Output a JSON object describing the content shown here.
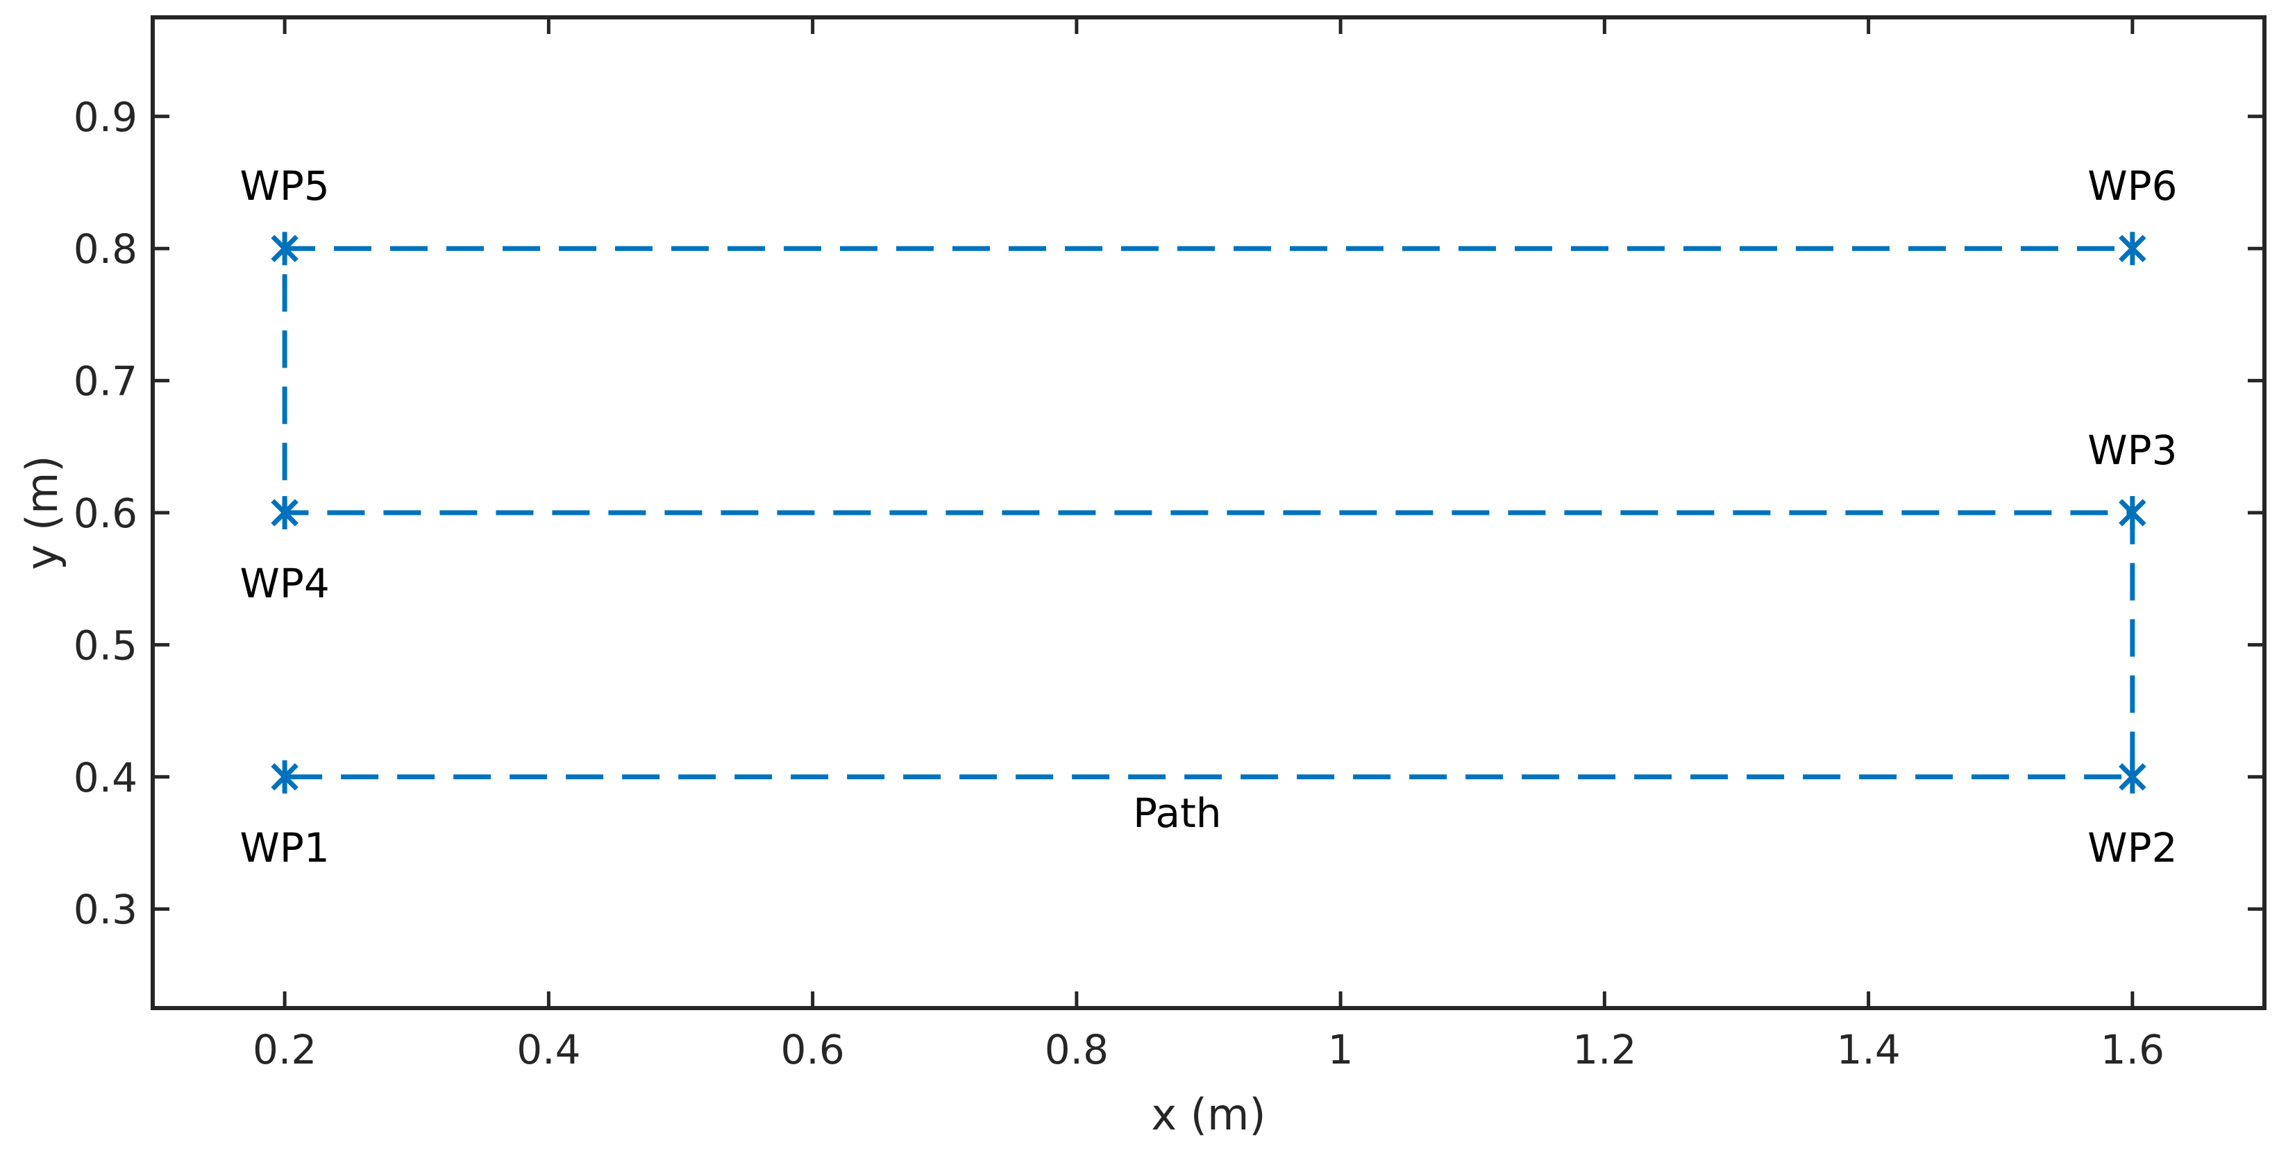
{
  "chart_data": {
    "type": "line",
    "title": "",
    "xlabel": "x (m)",
    "ylabel": "y (m)",
    "xlim": [
      0.1,
      1.7
    ],
    "ylim": [
      0.225,
      0.975
    ],
    "xticks": [
      0.2,
      0.4,
      0.6,
      0.8,
      1.0,
      1.2,
      1.4,
      1.6
    ],
    "xtick_labels": [
      "0.2",
      "0.4",
      "0.6",
      "0.8",
      "1",
      "1.2",
      "1.4",
      "1.6"
    ],
    "yticks": [
      0.3,
      0.4,
      0.5,
      0.6,
      0.7,
      0.8,
      0.9
    ],
    "ytick_labels": [
      "0.3",
      "0.4",
      "0.5",
      "0.6",
      "0.7",
      "0.8",
      "0.9"
    ],
    "grid": false,
    "box": true,
    "line_color": "#0072BD",
    "line_style": "dashed",
    "marker": "asterisk",
    "path": {
      "label": "Path",
      "x": [
        0.2,
        1.6,
        1.6,
        0.2,
        0.2,
        1.6
      ],
      "y": [
        0.4,
        0.4,
        0.6,
        0.6,
        0.8,
        0.8
      ]
    },
    "waypoints": [
      {
        "label": "WP1",
        "x": 0.2,
        "y": 0.4,
        "label_position": "below"
      },
      {
        "label": "WP2",
        "x": 1.6,
        "y": 0.4,
        "label_position": "below"
      },
      {
        "label": "WP3",
        "x": 1.6,
        "y": 0.6,
        "label_position": "above"
      },
      {
        "label": "WP4",
        "x": 0.2,
        "y": 0.6,
        "label_position": "below"
      },
      {
        "label": "WP5",
        "x": 0.2,
        "y": 0.8,
        "label_position": "above"
      },
      {
        "label": "WP6",
        "x": 1.6,
        "y": 0.8,
        "label_position": "above"
      }
    ],
    "annotations": [
      {
        "text": "Path",
        "x": 0.8,
        "y": 0.375
      }
    ]
  }
}
